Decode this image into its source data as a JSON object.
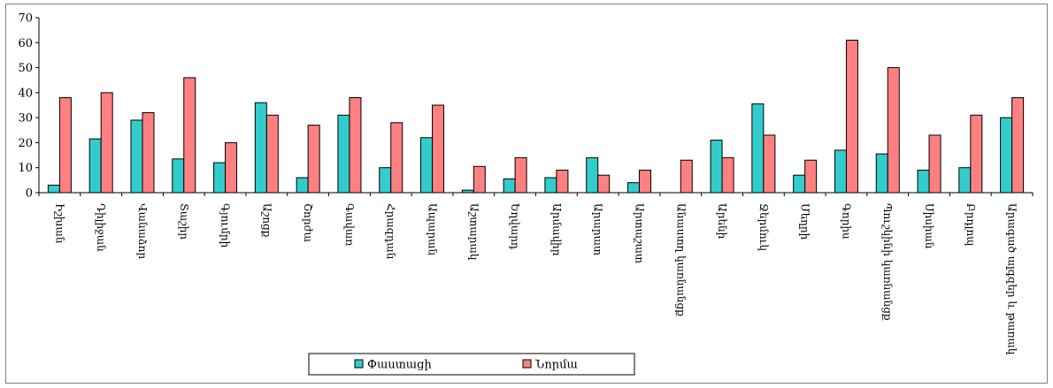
{
  "chart_data": {
    "type": "bar",
    "title": "",
    "xlabel": "",
    "ylabel": "",
    "ylim": [
      0,
      70
    ],
    "yticks": [
      0,
      10,
      20,
      30,
      40,
      50,
      60,
      70
    ],
    "grid": false,
    "legend_position": "bottom",
    "categories": [
      "Իշխան",
      "Դիլիջան",
      "Վանաձոր",
      "Տաշիր",
      "Գյումրի",
      "Աշոցք",
      "Շորժա",
      "Գավառ",
      "Հրազդան",
      "Ապարան",
      "Աշտարակ",
      "Եղվարդ",
      "Արմավիր",
      "Արարատ",
      "Արտաշատ",
      "Անաստղ կառնանցք",
      "Արենի",
      "Ջերմուկ",
      "Մեղրի",
      "Գորիս",
      "Պուշկինի կառնանցք",
      "Սիսիան",
      "Բրդլոպ",
      "Արագած ալգզեր և թառակ"
    ],
    "series": [
      {
        "name": "Փաստացի",
        "color": "#33cccc",
        "values": [
          3,
          21.5,
          29,
          13.5,
          12,
          36,
          6,
          31,
          10,
          22,
          1,
          5.5,
          6,
          14,
          4,
          0,
          21,
          35.5,
          7,
          17,
          15.5,
          9,
          10,
          30
        ]
      },
      {
        "name": "Նորմա",
        "color": "#ff8080",
        "values": [
          38,
          40,
          32,
          46,
          20,
          31,
          27,
          38,
          28,
          35,
          10.5,
          14,
          9,
          7,
          9,
          13,
          14,
          23,
          13,
          61,
          50,
          23,
          31,
          38
        ]
      }
    ]
  }
}
